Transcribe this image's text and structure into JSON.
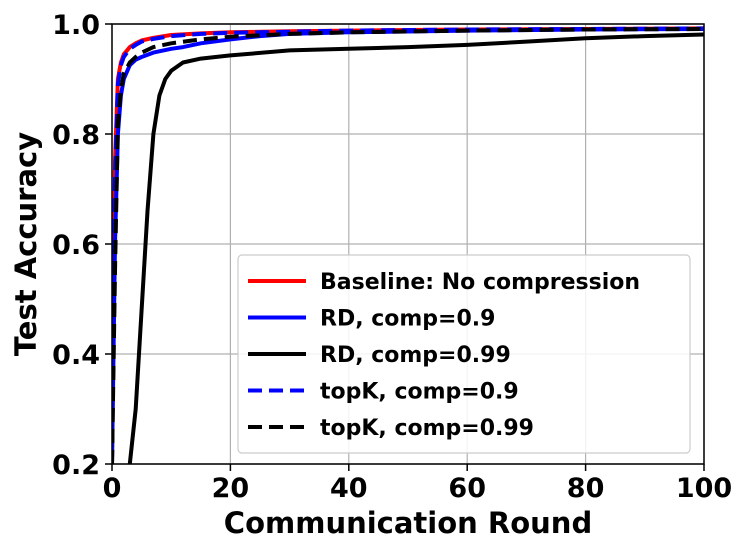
{
  "chart_data": {
    "type": "line",
    "title": "",
    "xlabel": "Communication Round",
    "ylabel": "Test Accuracy",
    "xlim": [
      0,
      100
    ],
    "ylim": [
      0.2,
      1.0
    ],
    "xticks": [
      0,
      20,
      40,
      60,
      80,
      100
    ],
    "yticks": [
      0.2,
      0.4,
      0.6,
      0.8,
      1.0
    ],
    "xtick_labels": [
      "0",
      "20",
      "40",
      "60",
      "80",
      "100"
    ],
    "ytick_labels": [
      "0.2",
      "0.4",
      "0.6",
      "0.8",
      "1.0"
    ],
    "grid": true,
    "legend_position": "lower-right",
    "series": [
      {
        "name": "Baseline: No compression",
        "color": "#ff0000",
        "dash": "solid",
        "x": [
          0,
          0.5,
          1,
          1.5,
          2,
          3,
          4,
          5,
          7,
          10,
          15,
          20,
          30,
          40,
          60,
          80,
          100
        ],
        "y": [
          0.2,
          0.75,
          0.9,
          0.93,
          0.945,
          0.958,
          0.965,
          0.97,
          0.975,
          0.98,
          0.983,
          0.985,
          0.987,
          0.988,
          0.99,
          0.991,
          0.992
        ]
      },
      {
        "name": "RD, comp=0.9",
        "color": "#0000ff",
        "dash": "solid",
        "x": [
          0,
          0.5,
          1,
          1.5,
          2,
          3,
          4,
          5,
          7,
          10,
          12,
          15,
          20,
          25,
          30,
          40,
          60,
          80,
          100
        ],
        "y": [
          0.2,
          0.6,
          0.8,
          0.87,
          0.9,
          0.925,
          0.935,
          0.94,
          0.948,
          0.955,
          0.958,
          0.965,
          0.972,
          0.978,
          0.982,
          0.985,
          0.988,
          0.99,
          0.991
        ]
      },
      {
        "name": "RD, comp=0.99",
        "color": "#000000",
        "dash": "solid",
        "x": [
          3,
          4,
          5,
          6,
          7,
          8,
          9,
          10,
          12,
          15,
          20,
          30,
          40,
          50,
          60,
          70,
          80,
          90,
          100
        ],
        "y": [
          0.2,
          0.3,
          0.48,
          0.66,
          0.8,
          0.87,
          0.9,
          0.915,
          0.93,
          0.937,
          0.943,
          0.952,
          0.955,
          0.958,
          0.962,
          0.968,
          0.974,
          0.978,
          0.981
        ]
      },
      {
        "name": "topK, comp=0.9",
        "color": "#0000ff",
        "dash": "dashed",
        "x": [
          0,
          0.5,
          1,
          1.5,
          2,
          3,
          4,
          5,
          7,
          10,
          15,
          20,
          30,
          40,
          60,
          80,
          100
        ],
        "y": [
          0.2,
          0.72,
          0.89,
          0.925,
          0.94,
          0.955,
          0.962,
          0.968,
          0.973,
          0.978,
          0.982,
          0.984,
          0.986,
          0.988,
          0.99,
          0.991,
          0.992
        ]
      },
      {
        "name": "topK, comp=0.99",
        "color": "#000000",
        "dash": "dashed",
        "x": [
          0,
          0.5,
          1,
          1.5,
          2,
          3,
          4,
          5,
          7,
          10,
          15,
          20,
          30,
          40,
          60,
          80,
          100
        ],
        "y": [
          0.2,
          0.55,
          0.82,
          0.88,
          0.91,
          0.93,
          0.94,
          0.948,
          0.958,
          0.965,
          0.972,
          0.977,
          0.982,
          0.985,
          0.988,
          0.99,
          0.991
        ]
      }
    ]
  }
}
